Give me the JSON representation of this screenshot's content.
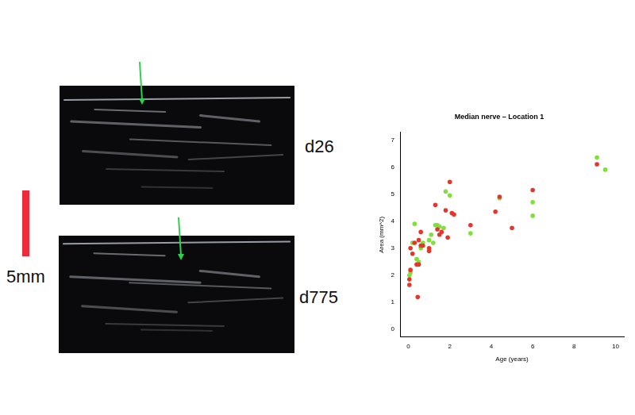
{
  "chart_data": {
    "type": "scatter",
    "title": "Median nerve – Location 1",
    "x_label": "Age (years)",
    "y_label": "Area (mm^2)",
    "xlim": [
      -0.4,
      10.4
    ],
    "ylim": [
      -0.28,
      7.28
    ],
    "xticks": [
      0,
      2,
      4,
      6,
      8,
      10
    ],
    "yticks": [
      0,
      1,
      2,
      3,
      4,
      5,
      6,
      7
    ],
    "grid": false,
    "series": [
      {
        "color": "#e5362b",
        "marker": "circle",
        "x": [
          0.05,
          0.05,
          0.1,
          0.1,
          0.2,
          0.3,
          0.4,
          0.45,
          0.5,
          0.5,
          0.6,
          0.6,
          0.7,
          1.0,
          1.0,
          1.3,
          1.4,
          1.5,
          1.6,
          1.8,
          1.9,
          2.0,
          2.1,
          2.2,
          3.0,
          4.2,
          4.4,
          5.0,
          6.0,
          9.1
        ],
        "values": [
          1.65,
          1.85,
          2.2,
          3.0,
          2.8,
          3.2,
          2.4,
          1.2,
          2.4,
          3.3,
          3.1,
          3.6,
          3.1,
          3.0,
          2.9,
          4.6,
          3.7,
          3.5,
          3.6,
          4.4,
          3.4,
          5.45,
          4.3,
          4.25,
          3.85,
          4.35,
          4.9,
          3.75,
          5.15,
          6.1
        ]
      },
      {
        "color": "#7fe03c",
        "marker": "circle",
        "x": [
          0.05,
          0.1,
          0.2,
          0.3,
          0.4,
          0.5,
          0.6,
          0.7,
          1.0,
          1.1,
          1.2,
          1.3,
          1.4,
          1.5,
          1.7,
          1.8,
          2.0,
          3.0,
          4.4,
          6.0,
          6.0,
          9.1,
          9.5
        ],
        "values": [
          2.0,
          2.1,
          3.2,
          3.9,
          2.6,
          2.5,
          3.0,
          3.2,
          3.3,
          3.5,
          3.2,
          3.85,
          3.85,
          3.8,
          3.75,
          5.1,
          4.95,
          3.55,
          4.85,
          4.7,
          4.2,
          6.35,
          5.9
        ]
      }
    ]
  },
  "images": [
    {
      "label": "d26"
    },
    {
      "label": "d775"
    }
  ],
  "scale_bar": {
    "label": "5mm"
  }
}
